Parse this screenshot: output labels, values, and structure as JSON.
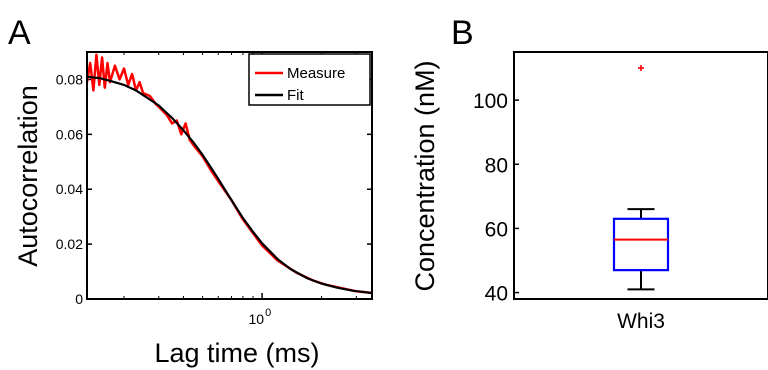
{
  "chart_data": [
    {
      "panel": "A",
      "type": "line",
      "xlabel": "Lag time (ms)",
      "ylabel": "Autocorrelation",
      "xscale": "log",
      "xlim": [
        0.13,
        3.6
      ],
      "ylim": [
        0,
        0.09
      ],
      "x_ticks": [
        {
          "value": 1,
          "base": "10",
          "exponent": "0"
        }
      ],
      "y_ticks": [
        "0",
        "0.02",
        "0.04",
        "0.06",
        "0.08"
      ],
      "y_tick_values": [
        0,
        0.02,
        0.04,
        0.06,
        0.08
      ],
      "legend_position": "top-right",
      "series": [
        {
          "name": "Measure",
          "color": "#ff0000",
          "x": [
            0.13,
            0.135,
            0.14,
            0.145,
            0.15,
            0.155,
            0.16,
            0.165,
            0.17,
            0.18,
            0.19,
            0.2,
            0.21,
            0.22,
            0.23,
            0.24,
            0.25,
            0.27,
            0.29,
            0.31,
            0.33,
            0.35,
            0.37,
            0.39,
            0.41,
            0.43,
            0.45,
            0.5,
            0.55,
            0.6,
            0.7,
            0.8,
            0.9,
            1.0,
            1.2,
            1.5,
            1.8,
            2.1,
            2.5,
            3.0,
            3.6
          ],
          "y": [
            0.079,
            0.086,
            0.076,
            0.089,
            0.078,
            0.088,
            0.077,
            0.086,
            0.079,
            0.085,
            0.08,
            0.084,
            0.078,
            0.082,
            0.076,
            0.079,
            0.075,
            0.074,
            0.071,
            0.069,
            0.067,
            0.064,
            0.065,
            0.06,
            0.064,
            0.058,
            0.056,
            0.052,
            0.047,
            0.043,
            0.036,
            0.029,
            0.024,
            0.0195,
            0.014,
            0.0095,
            0.0068,
            0.0052,
            0.004,
            0.0028,
            0.0022
          ]
        },
        {
          "name": "Fit",
          "color": "#000000",
          "x": [
            0.13,
            0.15,
            0.17,
            0.2,
            0.23,
            0.26,
            0.3,
            0.35,
            0.4,
            0.45,
            0.5,
            0.55,
            0.6,
            0.7,
            0.8,
            0.9,
            1.0,
            1.2,
            1.4,
            1.7,
            2.0,
            2.4,
            2.9,
            3.6
          ],
          "y": [
            0.081,
            0.0805,
            0.0795,
            0.078,
            0.076,
            0.0735,
            0.0705,
            0.066,
            0.0615,
            0.057,
            0.0525,
            0.048,
            0.0438,
            0.036,
            0.0295,
            0.0245,
            0.0203,
            0.0145,
            0.0108,
            0.0075,
            0.0056,
            0.0041,
            0.003,
            0.0022
          ]
        }
      ]
    },
    {
      "panel": "B",
      "type": "box",
      "xlabel": "",
      "ylabel": "Concentration (nM)",
      "categories": [
        "Whi3"
      ],
      "ylim": [
        38,
        115
      ],
      "y_ticks": [
        "40",
        "60",
        "80",
        "100"
      ],
      "y_tick_values": [
        40,
        60,
        80,
        100
      ],
      "box": {
        "min": 41,
        "q1": 47,
        "median": 56.5,
        "q3": 63,
        "max": 66,
        "outliers": [
          110
        ]
      },
      "colors": {
        "box": "#0000ff",
        "median": "#ff0000",
        "whisker": "#000000",
        "outlier": "#ff0000"
      }
    }
  ]
}
